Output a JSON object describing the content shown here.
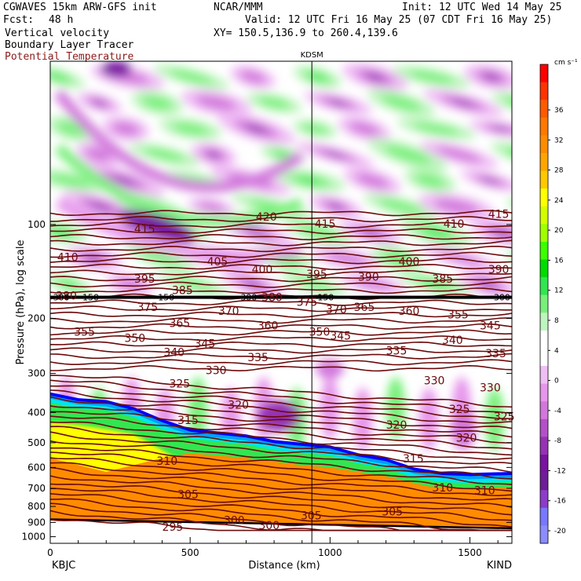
{
  "header": {
    "model": "CGWAVES 15km ARW-GFS init",
    "org": "NCAR/MMM",
    "init": "Init: 12 UTC Wed 14 May 25",
    "fcst_label": "Fcst:",
    "fcst_value": "48 h",
    "valid": "Valid: 12 UTC Fri 16 May 25 (07 CDT Fri 16 May 25)",
    "xy": "XY= 150.5,136.9 to 260.4,139.6",
    "field1": "Vertical velocity",
    "field2": "Boundary Layer Tracer",
    "field3": "Potential Temperature"
  },
  "colors": {
    "theta": "#6b0a0a",
    "tracer_high": "#0000ff",
    "orange": "#ff8c00"
  },
  "chart_data": {
    "type": "heatmap",
    "station_top": "KDSM",
    "station_left": "KBJC",
    "station_right": "KIND",
    "xlabel": "Distance (km)",
    "ylabel": "Pressure (hPa), log scale",
    "xlim": [
      0,
      1650
    ],
    "ylim": [
      1050,
      30
    ],
    "x_ticks": [
      "0",
      "500",
      "1000",
      "1500"
    ],
    "x_tick_values": [
      0,
      500,
      1000,
      1500
    ],
    "y_ticks": [
      "100",
      "200",
      "300",
      "400",
      "500",
      "600",
      "700",
      "800",
      "900",
      "1000"
    ],
    "y_tick_values": [
      100,
      200,
      300,
      400,
      500,
      600,
      700,
      800,
      900,
      1000
    ],
    "y_scale": "log",
    "station_line_km": 935,
    "colorbar": {
      "unit": "cm s⁻¹",
      "labels": [
        "36",
        "32",
        "28",
        "24",
        "20",
        "16",
        "12",
        "8",
        "4",
        "0",
        "-4",
        "-8",
        "-12",
        "-16",
        "-20"
      ],
      "colors": [
        "#ff0000",
        "#ff3300",
        "#ff5a00",
        "#ff7800",
        "#ff8c00",
        "#ffa500",
        "#ffc800",
        "#ffff00",
        "#d2ff00",
        "#a0ff00",
        "#3cff00",
        "#00dc00",
        "#32e650",
        "#78f07a",
        "#bef5be",
        "#ffffff",
        "#ffffff",
        "#f0bef5",
        "#e696eb",
        "#d278dc",
        "#b450c8",
        "#9632b4",
        "#7814a0",
        "#6e1e96",
        "#8c3cc8",
        "#7878ff",
        "#8c8cff"
      ]
    },
    "theta_labels": [
      {
        "t": "410",
        "x": 25,
        "p": 128
      },
      {
        "t": "415",
        "x": 300,
        "p": 104
      },
      {
        "t": "420",
        "x": 735,
        "p": 95
      },
      {
        "t": "415",
        "x": 945,
        "p": 100
      },
      {
        "t": "410",
        "x": 1405,
        "p": 100
      },
      {
        "t": "415",
        "x": 1565,
        "p": 93
      },
      {
        "t": "395",
        "x": 300,
        "p": 150
      },
      {
        "t": "405",
        "x": 560,
        "p": 132
      },
      {
        "t": "400",
        "x": 720,
        "p": 140
      },
      {
        "t": "395",
        "x": 915,
        "p": 145
      },
      {
        "t": "390",
        "x": 1100,
        "p": 148
      },
      {
        "t": "400",
        "x": 1245,
        "p": 132
      },
      {
        "t": "385",
        "x": 1365,
        "p": 150
      },
      {
        "t": "390",
        "x": 1565,
        "p": 140
      },
      {
        "t": "380",
        "x": 20,
        "p": 170
      },
      {
        "t": "385",
        "x": 435,
        "p": 163
      },
      {
        "t": "375",
        "x": 310,
        "p": 185
      },
      {
        "t": "380",
        "x": 755,
        "p": 172
      },
      {
        "t": "375",
        "x": 880,
        "p": 178
      },
      {
        "t": "370",
        "x": 600,
        "p": 190
      },
      {
        "t": "370",
        "x": 985,
        "p": 188
      },
      {
        "t": "365",
        "x": 1085,
        "p": 185
      },
      {
        "t": "360",
        "x": 1245,
        "p": 190
      },
      {
        "t": "355",
        "x": 1420,
        "p": 195
      },
      {
        "t": "365",
        "x": 425,
        "p": 208
      },
      {
        "t": "360",
        "x": 740,
        "p": 212
      },
      {
        "t": "345",
        "x": 1535,
        "p": 212
      },
      {
        "t": "355",
        "x": 85,
        "p": 222
      },
      {
        "t": "350",
        "x": 265,
        "p": 232
      },
      {
        "t": "350",
        "x": 925,
        "p": 222
      },
      {
        "t": "345",
        "x": 1000,
        "p": 228
      },
      {
        "t": "345",
        "x": 515,
        "p": 242
      },
      {
        "t": "340",
        "x": 405,
        "p": 258
      },
      {
        "t": "340",
        "x": 1400,
        "p": 236
      },
      {
        "t": "335",
        "x": 1200,
        "p": 255
      },
      {
        "t": "335",
        "x": 1555,
        "p": 260
      },
      {
        "t": "335",
        "x": 705,
        "p": 268
      },
      {
        "t": "330",
        "x": 555,
        "p": 295
      },
      {
        "t": "325",
        "x": 425,
        "p": 325
      },
      {
        "t": "330",
        "x": 1335,
        "p": 318
      },
      {
        "t": "330",
        "x": 1535,
        "p": 335
      },
      {
        "t": "320",
        "x": 635,
        "p": 380
      },
      {
        "t": "325",
        "x": 1425,
        "p": 392
      },
      {
        "t": "325",
        "x": 1585,
        "p": 415
      },
      {
        "t": "320",
        "x": 1200,
        "p": 440
      },
      {
        "t": "320",
        "x": 1450,
        "p": 485
      },
      {
        "t": "315",
        "x": 455,
        "p": 425
      },
      {
        "t": "315",
        "x": 1260,
        "p": 565
      },
      {
        "t": "310",
        "x": 380,
        "p": 575
      },
      {
        "t": "310",
        "x": 1365,
        "p": 700
      },
      {
        "t": "310",
        "x": 1515,
        "p": 715
      },
      {
        "t": "305",
        "x": 455,
        "p": 735
      },
      {
        "t": "305",
        "x": 895,
        "p": 860
      },
      {
        "t": "305",
        "x": 1185,
        "p": 835
      },
      {
        "t": "300",
        "x": 620,
        "p": 890
      },
      {
        "t": "300",
        "x": 745,
        "p": 925
      },
      {
        "t": "295",
        "x": 400,
        "p": 935
      }
    ],
    "tropopause_labels": [
      {
        "t": "300",
        "x": 10,
        "p": 171
      },
      {
        "t": "150",
        "x": 115,
        "p": 171
      },
      {
        "t": "150",
        "x": 385,
        "p": 171
      },
      {
        "t": "300",
        "x": 680,
        "p": 171
      },
      {
        "t": "150",
        "x": 955,
        "p": 171
      },
      {
        "t": "300",
        "x": 1585,
        "p": 171
      }
    ]
  }
}
